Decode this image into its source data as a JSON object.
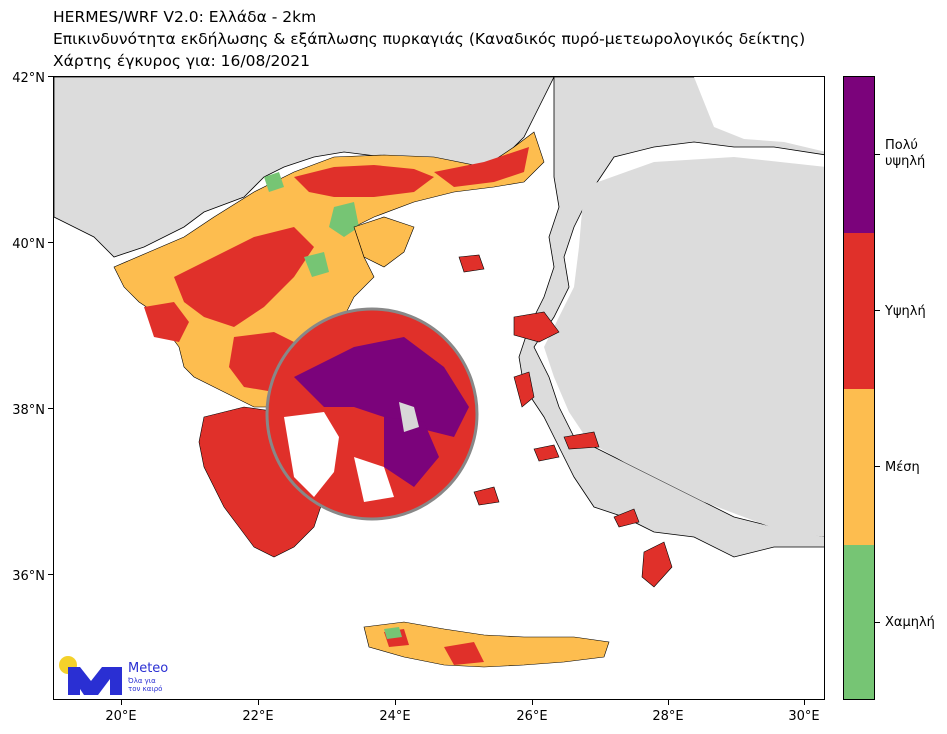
{
  "title": {
    "line1": "HERMES/WRF V2.0: Ελλάδα - 2km",
    "line2": "Επικινδυνότητα εκδήλωσης & εξάπλωσης πυρκαγιάς (Καναδικός πυρό-μετεωρολογικός δείκτης)",
    "line3": "Χάρτης έγκυρος για: 16/08/2021"
  },
  "map": {
    "lat_ticks": [
      "42°N",
      "40°N",
      "38°N",
      "36°N"
    ],
    "lon_ticks": [
      "20°E",
      "22°E",
      "24°E",
      "26°E",
      "28°E",
      "30°E"
    ],
    "extent": {
      "lon_min": 19.0,
      "lon_max": 30.3,
      "lat_min": 34.5,
      "lat_max": 42.0
    },
    "land_color": "#dcdcdc",
    "sea_color": "#ffffff",
    "inset_magnifier": "Attica zoom"
  },
  "legend": {
    "categories": [
      {
        "label": "Πολύ\nυψηλή",
        "line1": "Πολύ",
        "line2": "υψηλή",
        "color": "#7b037b"
      },
      {
        "label": "Υψηλή",
        "color": "#e0302a"
      },
      {
        "label": "Μέση",
        "color": "#fdbd4f"
      },
      {
        "label": "Χαμηλή",
        "color": "#76c574"
      }
    ]
  },
  "logo": {
    "brand": "Meteo",
    "tagline_1": "Όλα για",
    "tagline_2": "τον καιρό",
    "colors": {
      "sun": "#f4d12b",
      "mark": "#2a2fd3"
    }
  }
}
